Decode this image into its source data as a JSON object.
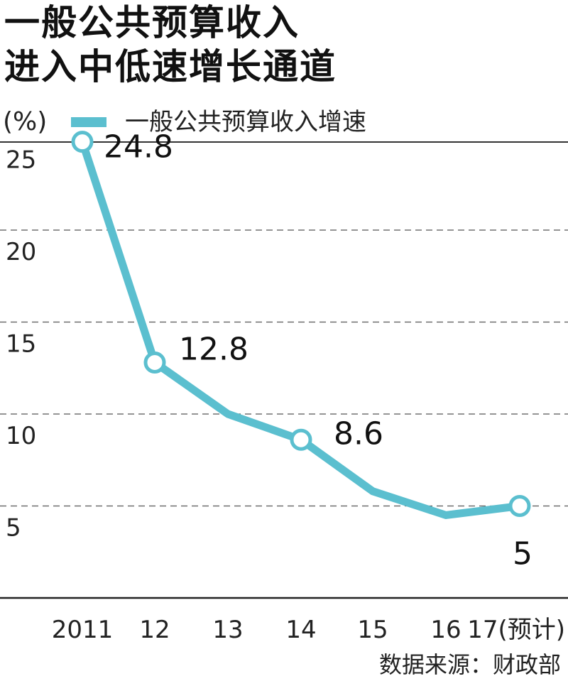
{
  "title": {
    "line1": "一般公共预算收入",
    "line2": "进入中低速增长通道"
  },
  "unit": "(%)",
  "source": "数据来源：财政部",
  "chart_data": {
    "type": "line",
    "title": "一般公共预算收入进入中低速增长通道",
    "ylabel": "(%)",
    "xlabel": "",
    "categories": [
      "2011",
      "12",
      "13",
      "14",
      "15",
      "16",
      "17(预计)"
    ],
    "series": [
      {
        "name": "一般公共预算收入增速",
        "values": [
          24.8,
          12.8,
          10.0,
          8.6,
          5.8,
          4.5,
          5.0
        ],
        "labels": [
          "24.8",
          "12.8",
          "",
          "8.6",
          "",
          "",
          "5"
        ],
        "color": "#5bbfcf"
      }
    ],
    "yticks": [
      "5",
      "10",
      "15",
      "20",
      "25"
    ],
    "ylim": [
      0,
      25
    ],
    "grid": "dashed-horizontal",
    "legend": "top"
  }
}
